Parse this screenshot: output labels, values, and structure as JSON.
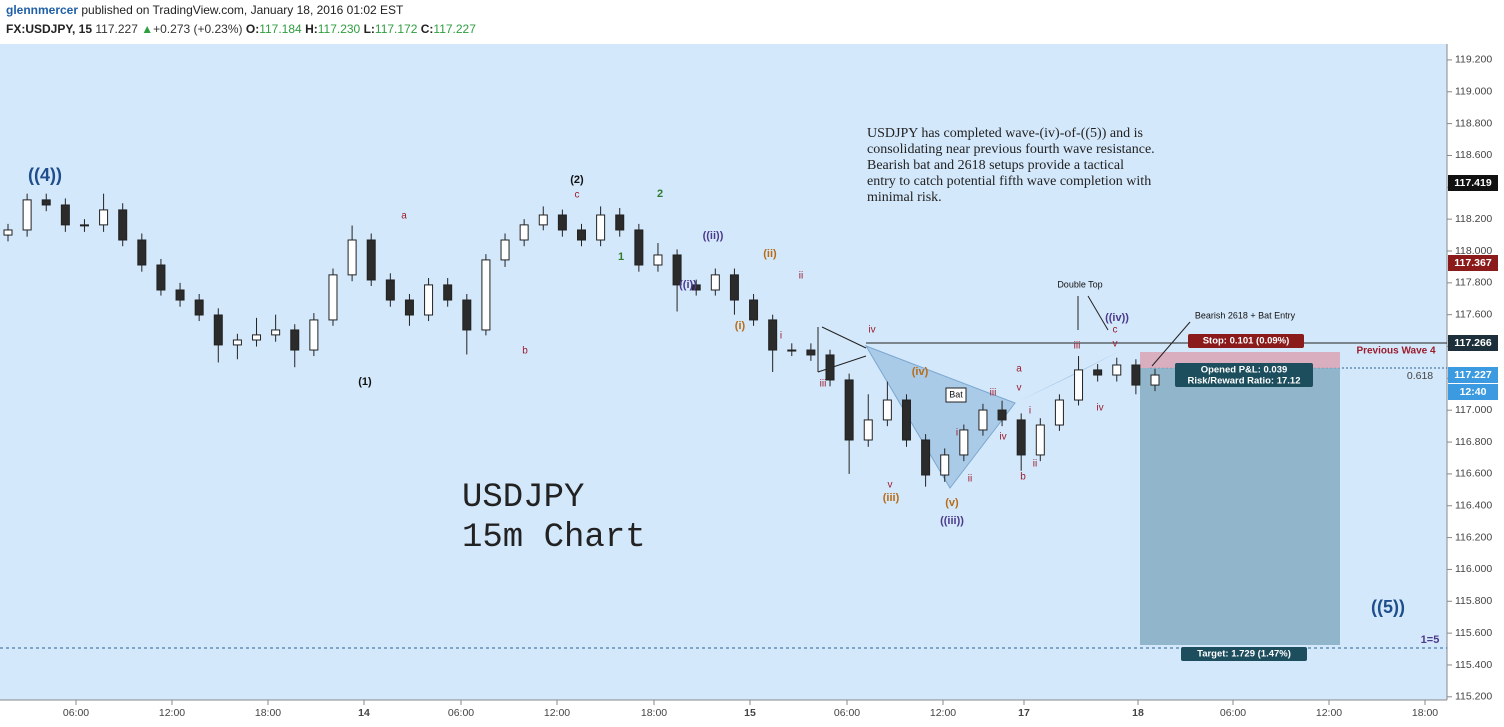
{
  "chart_data": {
    "type": "candlestick",
    "header": {
      "user": "glennmercer",
      "published": " published on TradingView.com, January 18, 2016 01:02 EST",
      "symbol": "FX:USDJPY, 15",
      "last": "117.227",
      "arrow": "▲",
      "change": "+0.273 (+0.23%)",
      "o_label": "O:",
      "o": "117.184",
      "h_label": "H:",
      "h": "117.230",
      "l_label": "L:",
      "l": "117.172",
      "c_label": "C:",
      "c": "117.227"
    },
    "open": [
      118.1,
      118.132,
      118.321,
      118.289,
      118.164,
      118.164,
      118.258,
      118.069,
      117.912,
      117.755,
      117.692,
      117.598,
      117.41,
      117.441,
      117.473,
      117.504,
      117.378,
      117.567,
      117.85,
      118.069,
      117.818,
      117.692,
      117.598,
      117.787,
      117.692,
      117.504,
      117.944,
      118.069,
      118.164,
      118.226,
      118.132,
      118.069,
      118.226,
      118.132,
      117.912,
      117.975,
      117.787,
      117.755,
      117.85,
      117.692,
      117.567,
      117.378,
      117.378,
      117.347,
      117.19,
      116.813,
      116.939,
      117.064,
      116.813,
      116.593,
      116.719,
      116.876,
      117.001,
      116.939,
      116.719,
      116.907,
      117.064,
      117.253,
      117.221,
      117.284,
      117.158
    ],
    "high": [
      118.17,
      118.36,
      118.36,
      118.33,
      118.2,
      118.36,
      118.3,
      118.11,
      117.95,
      117.8,
      117.73,
      117.64,
      117.48,
      117.58,
      117.6,
      117.54,
      117.61,
      117.89,
      118.16,
      118.11,
      117.86,
      117.73,
      117.83,
      117.83,
      117.73,
      117.98,
      118.11,
      118.2,
      118.28,
      118.26,
      118.17,
      118.28,
      118.27,
      118.17,
      118.05,
      118.01,
      117.82,
      117.89,
      117.89,
      117.73,
      117.6,
      117.42,
      117.42,
      117.38,
      117.23,
      117.1,
      117.18,
      117.1,
      116.85,
      116.76,
      116.91,
      117.04,
      117.06,
      116.98,
      116.95,
      117.1,
      117.34,
      117.29,
      117.33,
      117.32,
      117.26
    ],
    "low": [
      118.06,
      118.09,
      118.25,
      118.12,
      118.12,
      118.12,
      118.03,
      117.87,
      117.72,
      117.65,
      117.56,
      117.3,
      117.32,
      117.4,
      117.43,
      117.27,
      117.34,
      117.53,
      117.81,
      117.78,
      117.65,
      117.53,
      117.56,
      117.65,
      117.35,
      117.47,
      117.9,
      118.03,
      118.13,
      118.09,
      118.03,
      118.03,
      118.09,
      117.87,
      117.87,
      117.62,
      117.72,
      117.72,
      117.6,
      117.53,
      117.24,
      117.34,
      117.31,
      117.15,
      116.6,
      116.77,
      116.9,
      116.77,
      116.52,
      116.55,
      116.68,
      116.84,
      116.9,
      116.62,
      116.68,
      116.87,
      117.03,
      117.18,
      117.18,
      117.1,
      117.12
    ],
    "close": [
      118.132,
      118.321,
      118.289,
      118.164,
      118.164,
      118.258,
      118.069,
      117.912,
      117.755,
      117.692,
      117.598,
      117.41,
      117.441,
      117.473,
      117.504,
      117.378,
      117.567,
      117.85,
      118.069,
      117.818,
      117.692,
      117.598,
      117.787,
      117.692,
      117.504,
      117.944,
      118.069,
      118.164,
      118.226,
      118.132,
      118.069,
      118.226,
      118.132,
      117.912,
      117.975,
      117.787,
      117.755,
      117.85,
      117.692,
      117.567,
      117.378,
      117.378,
      117.347,
      117.19,
      116.813,
      116.939,
      117.064,
      116.813,
      116.593,
      116.719,
      116.876,
      117.001,
      116.939,
      116.719,
      116.907,
      117.064,
      117.253,
      117.221,
      117.284,
      117.158,
      117.221
    ],
    "up_color": "#ffffff",
    "down_color": "#2b2b2b",
    "ylim": [
      115.18,
      119.3
    ],
    "yticks": [
      {
        "value": 115.2,
        "label": "115.200"
      },
      {
        "value": 115.4,
        "label": "115.400"
      },
      {
        "value": 115.6,
        "label": "115.600"
      },
      {
        "value": 115.8,
        "label": "115.800"
      },
      {
        "value": 116,
        "label": "116.000"
      },
      {
        "value": 116.2,
        "label": "116.200"
      },
      {
        "value": 116.4,
        "label": "116.400"
      },
      {
        "value": 116.6,
        "label": "116.600"
      },
      {
        "value": 116.8,
        "label": "116.800"
      },
      {
        "value": 117,
        "label": "117.000"
      },
      {
        "value": 117.2,
        "label": "117.200"
      },
      {
        "value": 117.4,
        "label": "117.400"
      },
      {
        "value": 117.6,
        "label": "117.600"
      },
      {
        "value": 117.8,
        "label": "117.800"
      },
      {
        "value": 118,
        "label": "118.000"
      },
      {
        "value": 118.2,
        "label": "118.200"
      },
      {
        "value": 118.4,
        "label": "118.400"
      },
      {
        "value": 118.6,
        "label": "118.600"
      },
      {
        "value": 118.8,
        "label": "118.800"
      },
      {
        "value": 119,
        "label": "119.000"
      },
      {
        "value": 119.2,
        "label": "119.200"
      }
    ],
    "xtick_labels": [
      "06:00",
      "12:00",
      "18:00",
      "14",
      "06:00",
      "12:00",
      "18:00",
      "15",
      "06:00",
      "12:00",
      "17",
      "18",
      "06:00",
      "12:00",
      "18:00"
    ],
    "price_labels": [
      "117.419",
      "117.367",
      "117.266",
      "117.227",
      "12:40"
    ],
    "note": [
      "USDJPY has completed wave-(iv)-of-((5)) and is",
      "consolidating near previous fourth wave resistance.",
      "Bearish bat and 2618 setups provide a tactical",
      "entry to catch potential fifth wave completion with",
      "minimal risk."
    ],
    "big_title": [
      "USDJPY",
      "15m Chart"
    ],
    "annotations": [
      "((4))",
      "(1)",
      "a",
      "b",
      "(2)",
      "c",
      "1",
      "2",
      "((ii))",
      "((i))",
      "(ii)",
      "ii",
      "(i)",
      "i",
      "iv",
      "iii",
      "(iv)",
      "Bat",
      "v",
      "(iii)",
      "(v)",
      "((iii))",
      "i",
      "ii",
      "iii",
      "iv",
      "a",
      "v",
      "i",
      "ii",
      "b",
      "iii",
      "Double Top",
      "((iv))",
      "c",
      "v",
      "iv",
      "Bearish 2618 + Bat Entry",
      "Previous Wave 4",
      "0.618",
      "((5))",
      "1=5"
    ],
    "trade": {
      "stop": "Stop: 0.101 (0.09%)",
      "pnl": "Opened P&L: 0.039",
      "rr": "Risk/Reward Ratio: 17.12",
      "target": "Target: 1.729 (1.47%)"
    }
  }
}
